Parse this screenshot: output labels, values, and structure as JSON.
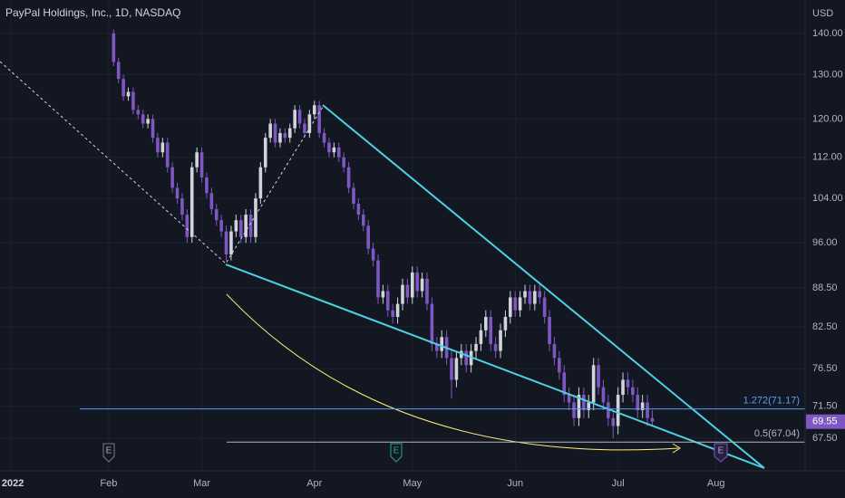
{
  "chart_data": {
    "type": "candlestick",
    "title": "PayPal Holdings, Inc., 1D, NASDAQ",
    "currency": "USD",
    "log_scale": true,
    "grid": true,
    "up_color": "#d1d4dc",
    "down_color": "#7e57c2",
    "xlim": [
      -2.2,
      162.2
    ],
    "xticks": [
      {
        "value": 0,
        "label": "2022"
      },
      {
        "value": 20,
        "label": "Feb"
      },
      {
        "value": 39,
        "label": "Mar"
      },
      {
        "value": 62,
        "label": "Apr"
      },
      {
        "value": 82,
        "label": "May"
      },
      {
        "value": 103,
        "label": "Jun"
      },
      {
        "value": 124,
        "label": "Jul"
      },
      {
        "value": 144,
        "label": "Aug"
      }
    ],
    "ylim": [
      63.65,
      148.7
    ],
    "yticks": [
      {
        "value": 67.5,
        "label": "67.50"
      },
      {
        "value": 71.5,
        "label": "71.50"
      },
      {
        "value": 76.5,
        "label": "76.50"
      },
      {
        "value": 82.5,
        "label": "82.50"
      },
      {
        "value": 88.5,
        "label": "88.50"
      },
      {
        "value": 96,
        "label": "96.00"
      },
      {
        "value": 104,
        "label": "104.00"
      },
      {
        "value": 112,
        "label": "112.00"
      },
      {
        "value": 120,
        "label": "120.00"
      },
      {
        "value": 130,
        "label": "130.00"
      },
      {
        "value": 140,
        "label": "140.00"
      }
    ],
    "levels": [
      {
        "label": "1.272(71.17)",
        "value": 71.17,
        "color": "#5b9cf6"
      },
      {
        "label": "0.5(67.04)",
        "value": 67.04,
        "color": "#b2b5be"
      }
    ],
    "events": [
      "E",
      "E",
      "E"
    ],
    "x": [
      21,
      22,
      23,
      24,
      25,
      26,
      27,
      28,
      29,
      30,
      31,
      32,
      33,
      34,
      35,
      36,
      37,
      38,
      39,
      40,
      41,
      42,
      43,
      44,
      45,
      46,
      47,
      48,
      49,
      50,
      51,
      52,
      53,
      54,
      55,
      56,
      57,
      58,
      59,
      60,
      61,
      62,
      63,
      64,
      65,
      66,
      67,
      68,
      69,
      70,
      71,
      72,
      73,
      74,
      75,
      76,
      77,
      78,
      79,
      80,
      81,
      82,
      83,
      84,
      85,
      86,
      87,
      88,
      89,
      90,
      91,
      92,
      93,
      94,
      95,
      96,
      97,
      98,
      99,
      100,
      101,
      102,
      103,
      104,
      105,
      106,
      107,
      108,
      109,
      110,
      111,
      112,
      113,
      114,
      115,
      116,
      117,
      118,
      119,
      120,
      121,
      122,
      123,
      124,
      125,
      126,
      127,
      128,
      129,
      130,
      131
    ],
    "open": [
      140,
      133,
      129,
      125,
      126,
      122,
      121,
      119,
      120,
      116,
      113,
      115,
      110,
      106,
      104,
      101,
      97,
      110,
      113,
      108,
      105,
      102,
      100,
      98,
      94,
      98,
      100,
      97,
      101,
      97,
      104,
      110,
      116,
      119,
      115,
      117,
      116,
      118,
      122,
      119,
      117,
      121,
      123,
      117,
      115,
      113,
      114,
      112,
      110,
      106,
      103,
      101,
      99,
      95,
      93,
      87,
      88,
      85,
      84,
      86,
      89,
      87,
      91,
      88,
      90,
      86,
      80,
      79,
      81,
      78,
      75,
      78,
      79,
      77,
      79,
      80,
      82,
      84,
      80,
      79,
      82,
      84,
      87,
      85,
      87,
      88,
      86,
      88,
      87,
      84,
      80,
      78,
      76,
      73,
      72,
      70,
      73,
      71,
      72,
      77,
      74,
      72,
      70,
      69,
      73,
      75,
      74,
      73,
      71,
      72,
      70
    ],
    "high": [
      141,
      134,
      130,
      127,
      127,
      123,
      122,
      121,
      121,
      117,
      116,
      116,
      111,
      107,
      105,
      102,
      111,
      114,
      114,
      109,
      106,
      103,
      101,
      99,
      99,
      101,
      101,
      102,
      102,
      105,
      111,
      117,
      120,
      120,
      118,
      118,
      119,
      123,
      123,
      120,
      122,
      124,
      124,
      118,
      116,
      115,
      115,
      113,
      111,
      107,
      104,
      102,
      100,
      96,
      94,
      89,
      89,
      86,
      87,
      90,
      90,
      92,
      92,
      91,
      91,
      87,
      81,
      82,
      82,
      79,
      79,
      80,
      80,
      80,
      81,
      83,
      85,
      85,
      81,
      83,
      85,
      88,
      88,
      88,
      89,
      89,
      89,
      89,
      88,
      85,
      81,
      79,
      77,
      74,
      73,
      74,
      74,
      73,
      78,
      78,
      75,
      73,
      71,
      74,
      76,
      76,
      75,
      74,
      73,
      73,
      71
    ],
    "low": [
      132,
      128,
      124,
      124,
      121,
      120,
      118,
      118,
      115,
      112,
      112,
      109,
      105,
      103,
      100,
      96,
      96,
      109,
      107,
      104,
      101,
      99,
      97,
      93,
      93,
      97,
      96,
      96,
      96,
      96,
      103,
      109,
      115,
      114,
      114,
      115,
      115,
      117,
      118,
      116,
      116,
      120,
      116,
      114,
      112,
      112,
      111,
      109,
      105,
      102,
      100,
      98,
      94,
      92,
      86,
      86,
      84,
      83,
      83,
      85,
      86,
      86,
      87,
      87,
      85,
      79,
      78,
      78,
      77,
      72.5,
      74,
      77,
      76,
      76,
      78,
      79,
      81,
      79,
      78,
      78,
      81,
      83,
      84,
      84,
      86,
      85,
      85,
      86,
      83,
      79,
      77,
      75,
      72,
      71,
      69,
      69,
      70,
      70,
      71,
      73,
      71,
      69,
      67.5,
      68,
      72,
      73,
      72,
      70,
      70,
      69,
      69
    ],
    "close": [
      133,
      129,
      125,
      126,
      122,
      121,
      119,
      120,
      116,
      113,
      115,
      110,
      106,
      104,
      101,
      97,
      110,
      113,
      108,
      105,
      102,
      100,
      98,
      94,
      98,
      100,
      97,
      101,
      97,
      104,
      110,
      116,
      119,
      115,
      117,
      116,
      118,
      122,
      119,
      117,
      121,
      123,
      117,
      115,
      113,
      114,
      112,
      110,
      106,
      103,
      101,
      99,
      95,
      93,
      87,
      88,
      85,
      84,
      86,
      89,
      87,
      91,
      88,
      90,
      86,
      80,
      79,
      81,
      78,
      75,
      78,
      79,
      77,
      79,
      80,
      82,
      84,
      80,
      79,
      82,
      84,
      87,
      85,
      87,
      88,
      86,
      88,
      87,
      84,
      80,
      78,
      76,
      73,
      72,
      70,
      73,
      71,
      72,
      77,
      74,
      72,
      70,
      69,
      73,
      75,
      74,
      73,
      71,
      72,
      70,
      69.55
    ]
  }
}
